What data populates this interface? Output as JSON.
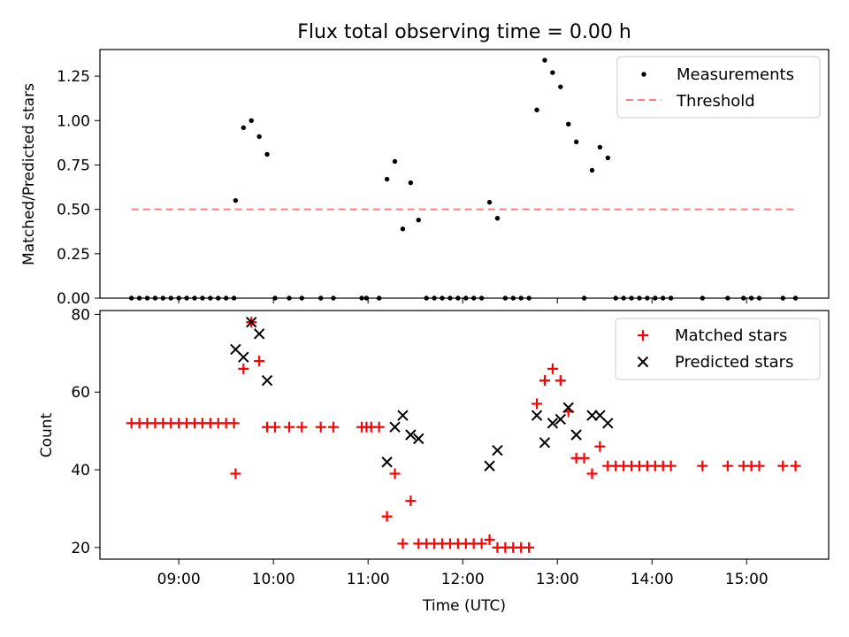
{
  "title": "Flux total observing time = 0.00 h",
  "colors": {
    "measurements": "#000000",
    "threshold": "#ff7f7f",
    "matched": "#ff0000",
    "predicted": "#000000"
  },
  "chart_data": [
    {
      "type": "scatter",
      "title": "Flux total observing time = 0.00 h",
      "ylabel": "Matched/Predicted stars",
      "xlabel": "",
      "ylim": [
        0,
        1.4
      ],
      "yticks": [
        0,
        0.25,
        0.5,
        0.75,
        1.0,
        1.25
      ],
      "ytick_labels": [
        "0.00",
        "0.25",
        "0.50",
        "0.75",
        "1.00",
        "1.25"
      ],
      "legend": [
        "Measurements",
        "Threshold"
      ],
      "legend_position": "top-right",
      "threshold": {
        "name": "Threshold",
        "y": 0.5,
        "x_range": [
          "08:30",
          "15:30"
        ]
      },
      "series": [
        {
          "name": "Measurements",
          "points": [
            [
              "08:30",
              0.0
            ],
            [
              "08:35",
              0.0
            ],
            [
              "08:40",
              0.0
            ],
            [
              "08:45",
              0.0
            ],
            [
              "08:50",
              0.0
            ],
            [
              "08:55",
              0.0
            ],
            [
              "09:00",
              0.0
            ],
            [
              "09:05",
              0.0
            ],
            [
              "09:10",
              0.0
            ],
            [
              "09:15",
              0.0
            ],
            [
              "09:20",
              0.0
            ],
            [
              "09:25",
              0.0
            ],
            [
              "09:30",
              0.0
            ],
            [
              "09:35",
              0.0
            ],
            [
              "09:36",
              0.55
            ],
            [
              "09:41",
              0.96
            ],
            [
              "09:46",
              1.0
            ],
            [
              "09:51",
              0.91
            ],
            [
              "09:56",
              0.81
            ],
            [
              "10:01",
              0.0
            ],
            [
              "10:10",
              0.0
            ],
            [
              "10:18",
              0.0
            ],
            [
              "10:30",
              0.0
            ],
            [
              "10:38",
              0.0
            ],
            [
              "10:56",
              0.0
            ],
            [
              "10:59",
              0.0
            ],
            [
              "11:07",
              0.0
            ],
            [
              "11:12",
              0.67
            ],
            [
              "11:17",
              0.77
            ],
            [
              "11:22",
              0.39
            ],
            [
              "11:27",
              0.65
            ],
            [
              "11:32",
              0.44
            ],
            [
              "11:37",
              0.0
            ],
            [
              "11:42",
              0.0
            ],
            [
              "11:47",
              0.0
            ],
            [
              "11:52",
              0.0
            ],
            [
              "11:57",
              0.0
            ],
            [
              "12:02",
              0.0
            ],
            [
              "12:07",
              0.0
            ],
            [
              "12:12",
              0.0
            ],
            [
              "12:17",
              0.54
            ],
            [
              "12:22",
              0.45
            ],
            [
              "12:27",
              0.0
            ],
            [
              "12:32",
              0.0
            ],
            [
              "12:37",
              0.0
            ],
            [
              "12:42",
              0.0
            ],
            [
              "12:47",
              1.06
            ],
            [
              "12:52",
              1.34
            ],
            [
              "12:57",
              1.27
            ],
            [
              "13:02",
              1.19
            ],
            [
              "13:07",
              0.98
            ],
            [
              "13:12",
              0.88
            ],
            [
              "13:17",
              0.0
            ],
            [
              "13:22",
              0.72
            ],
            [
              "13:27",
              0.85
            ],
            [
              "13:32",
              0.79
            ],
            [
              "13:37",
              0.0
            ],
            [
              "13:42",
              0.0
            ],
            [
              "13:47",
              0.0
            ],
            [
              "13:52",
              0.0
            ],
            [
              "13:57",
              0.0
            ],
            [
              "14:02",
              0.0
            ],
            [
              "14:07",
              0.0
            ],
            [
              "14:12",
              0.0
            ],
            [
              "14:32",
              0.0
            ],
            [
              "14:48",
              0.0
            ],
            [
              "14:58",
              0.0
            ],
            [
              "15:03",
              0.0
            ],
            [
              "15:08",
              0.0
            ],
            [
              "15:23",
              0.0
            ],
            [
              "15:31",
              0.0
            ]
          ]
        }
      ]
    },
    {
      "type": "scatter",
      "title": "",
      "xlabel": "Time (UTC)",
      "ylabel": "Count",
      "ylim": [
        17,
        81
      ],
      "yticks": [
        20,
        40,
        60,
        80
      ],
      "xlim": [
        "08:10",
        "15:52"
      ],
      "xticks": [
        "09:00",
        "10:00",
        "11:00",
        "12:00",
        "13:00",
        "14:00",
        "15:00"
      ],
      "legend": [
        "Matched stars",
        "Predicted stars"
      ],
      "legend_position": "top-right",
      "series": [
        {
          "name": "Matched stars",
          "marker": "plus",
          "points": [
            [
              "08:30",
              52
            ],
            [
              "08:35",
              52
            ],
            [
              "08:40",
              52
            ],
            [
              "08:45",
              52
            ],
            [
              "08:50",
              52
            ],
            [
              "08:55",
              52
            ],
            [
              "09:00",
              52
            ],
            [
              "09:05",
              52
            ],
            [
              "09:10",
              52
            ],
            [
              "09:15",
              52
            ],
            [
              "09:20",
              52
            ],
            [
              "09:25",
              52
            ],
            [
              "09:30",
              52
            ],
            [
              "09:35",
              52
            ],
            [
              "09:36",
              39
            ],
            [
              "09:41",
              66
            ],
            [
              "09:46",
              78
            ],
            [
              "09:51",
              68
            ],
            [
              "09:56",
              51
            ],
            [
              "10:01",
              51
            ],
            [
              "10:10",
              51
            ],
            [
              "10:18",
              51
            ],
            [
              "10:30",
              51
            ],
            [
              "10:38",
              51
            ],
            [
              "10:56",
              51
            ],
            [
              "10:59",
              51
            ],
            [
              "11:02",
              51
            ],
            [
              "11:07",
              51
            ],
            [
              "11:12",
              28
            ],
            [
              "11:17",
              39
            ],
            [
              "11:22",
              21
            ],
            [
              "11:27",
              32
            ],
            [
              "11:32",
              21
            ],
            [
              "11:37",
              21
            ],
            [
              "11:42",
              21
            ],
            [
              "11:47",
              21
            ],
            [
              "11:52",
              21
            ],
            [
              "11:57",
              21
            ],
            [
              "12:02",
              21
            ],
            [
              "12:07",
              21
            ],
            [
              "12:12",
              21
            ],
            [
              "12:17",
              22
            ],
            [
              "12:22",
              20
            ],
            [
              "12:27",
              20
            ],
            [
              "12:32",
              20
            ],
            [
              "12:37",
              20
            ],
            [
              "12:42",
              20
            ],
            [
              "12:47",
              57
            ],
            [
              "12:52",
              63
            ],
            [
              "12:57",
              66
            ],
            [
              "13:02",
              63
            ],
            [
              "13:07",
              55
            ],
            [
              "13:12",
              43
            ],
            [
              "13:17",
              43
            ],
            [
              "13:22",
              39
            ],
            [
              "13:27",
              46
            ],
            [
              "13:32",
              41
            ],
            [
              "13:37",
              41
            ],
            [
              "13:42",
              41
            ],
            [
              "13:47",
              41
            ],
            [
              "13:52",
              41
            ],
            [
              "13:57",
              41
            ],
            [
              "14:02",
              41
            ],
            [
              "14:07",
              41
            ],
            [
              "14:12",
              41
            ],
            [
              "14:32",
              41
            ],
            [
              "14:48",
              41
            ],
            [
              "14:58",
              41
            ],
            [
              "15:03",
              41
            ],
            [
              "15:08",
              41
            ],
            [
              "15:23",
              41
            ],
            [
              "15:31",
              41
            ]
          ]
        },
        {
          "name": "Predicted stars",
          "marker": "x",
          "points": [
            [
              "09:36",
              71
            ],
            [
              "09:41",
              69
            ],
            [
              "09:46",
              78
            ],
            [
              "09:51",
              75
            ],
            [
              "09:56",
              63
            ],
            [
              "11:12",
              42
            ],
            [
              "11:17",
              51
            ],
            [
              "11:22",
              54
            ],
            [
              "11:27",
              49
            ],
            [
              "11:32",
              48
            ],
            [
              "12:17",
              41
            ],
            [
              "12:22",
              45
            ],
            [
              "12:47",
              54
            ],
            [
              "12:52",
              47
            ],
            [
              "12:57",
              52
            ],
            [
              "13:02",
              53
            ],
            [
              "13:07",
              56
            ],
            [
              "13:12",
              49
            ],
            [
              "13:22",
              54
            ],
            [
              "13:27",
              54
            ],
            [
              "13:32",
              52
            ]
          ]
        }
      ]
    }
  ]
}
